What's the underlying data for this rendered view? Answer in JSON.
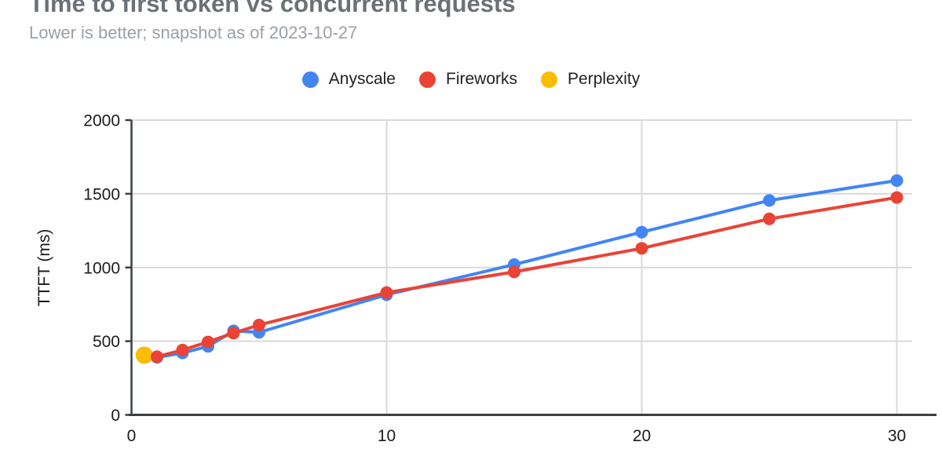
{
  "chart_data": {
    "type": "line",
    "title": "Time to first token vs concurrent requests",
    "subtitle": "Lower is better; snapshot as of 2023-10-27",
    "xlabel": "",
    "ylabel": "TTFT (ms)",
    "xlim": [
      0,
      30.6
    ],
    "ylim": [
      0,
      2000
    ],
    "x_ticks": [
      0,
      10,
      20,
      30
    ],
    "y_ticks": [
      0,
      500,
      1000,
      1500,
      2000
    ],
    "grid": true,
    "legend_position": "top-center",
    "colors": {
      "gridline": "#d9d9d9",
      "axis": "#3c4043",
      "tick_label": "#1b1b1b"
    },
    "line_width": 4,
    "z_order": [
      0,
      2,
      1
    ],
    "series": [
      {
        "name": "Anyscale",
        "color": "#4285F4",
        "marker_radius": 8,
        "points": [
          [
            1,
            390
          ],
          [
            2,
            420
          ],
          [
            3,
            465
          ],
          [
            4,
            570
          ],
          [
            5,
            560
          ],
          [
            10,
            815
          ],
          [
            15,
            1020
          ],
          [
            20,
            1240
          ],
          [
            25,
            1455
          ],
          [
            30,
            1590
          ]
        ]
      },
      {
        "name": "Fireworks",
        "color": "#EA4335",
        "marker_radius": 8,
        "points": [
          [
            1,
            395
          ],
          [
            2,
            440
          ],
          [
            3,
            495
          ],
          [
            4,
            555
          ],
          [
            5,
            610
          ],
          [
            10,
            830
          ],
          [
            15,
            970
          ],
          [
            20,
            1130
          ],
          [
            25,
            1330
          ],
          [
            30,
            1475
          ]
        ]
      },
      {
        "name": "Perplexity",
        "color": "#FBBC04",
        "marker_radius": 11,
        "points": [
          [
            0.5,
            405
          ]
        ]
      }
    ]
  }
}
